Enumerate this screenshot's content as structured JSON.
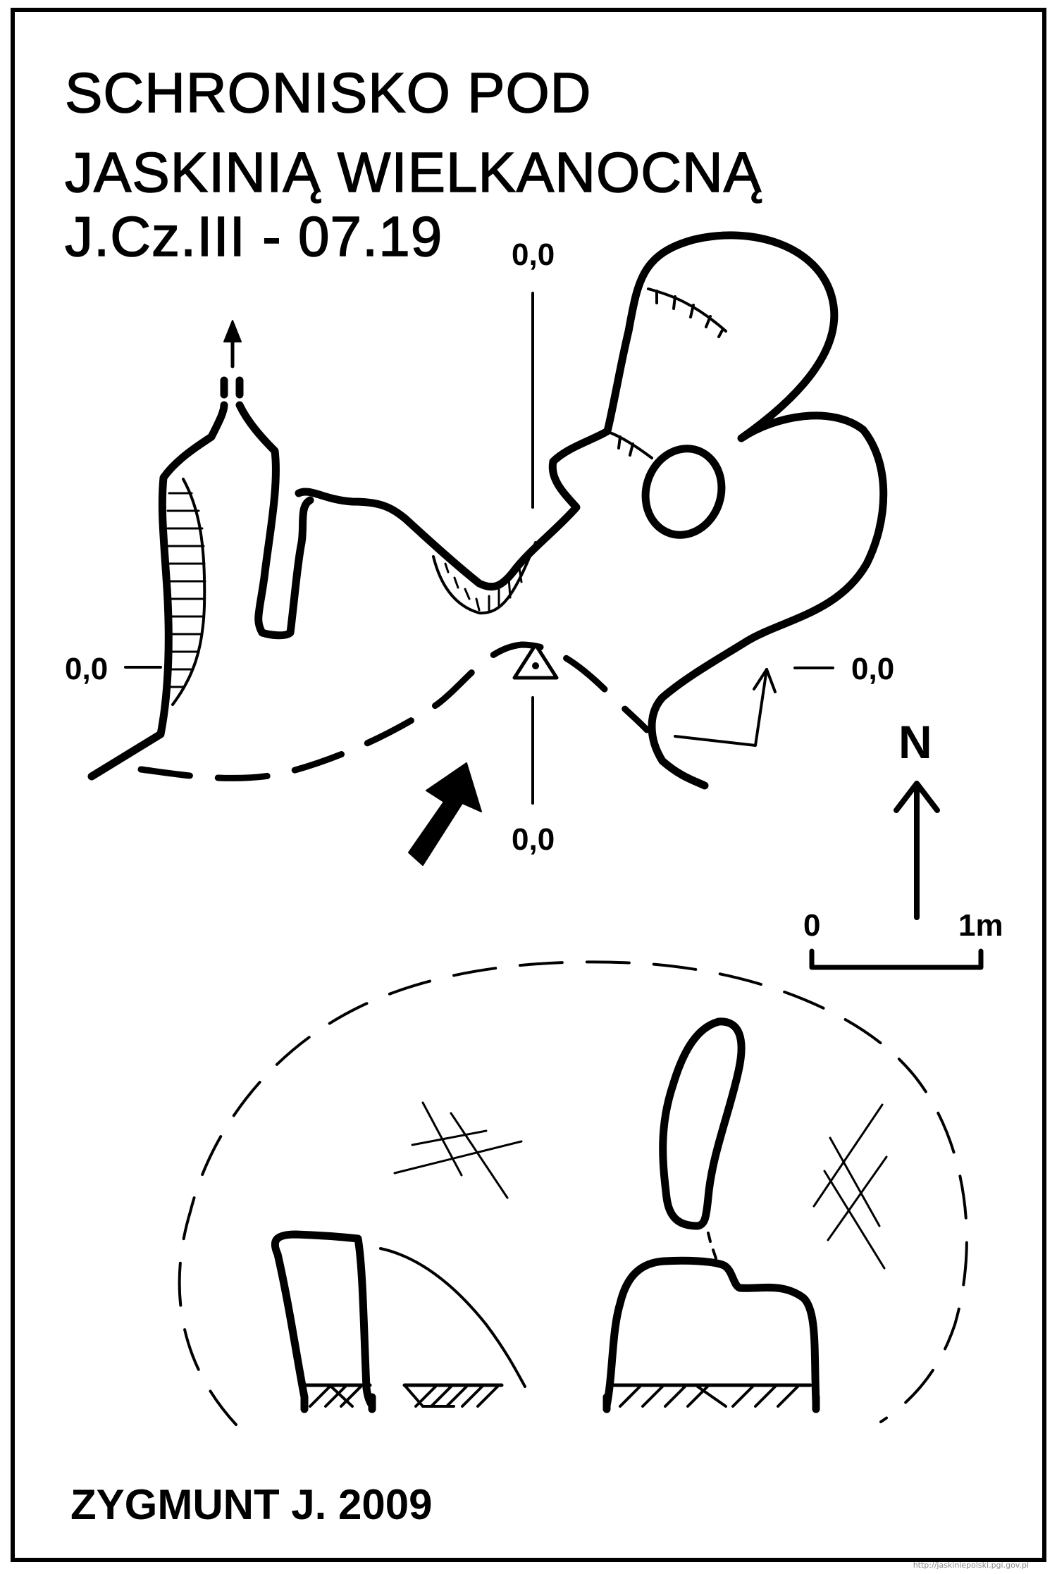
{
  "title": {
    "line1": "SCHRONISKO POD",
    "line2": "JASKINIĄ WIELKANOCNĄ",
    "line3": "J.Cz.III - 07.19"
  },
  "plan": {
    "section_marks": {
      "top": "0,0",
      "bottom": "0,0",
      "left": "0,0",
      "right": "0,0"
    },
    "north_label": "N"
  },
  "scale_bar": {
    "start_label": "0",
    "end_label": "1m"
  },
  "author": "ZYGMUNT J.  2009",
  "watermark": "http://jaskiniepolski.pgi.gov.pl"
}
